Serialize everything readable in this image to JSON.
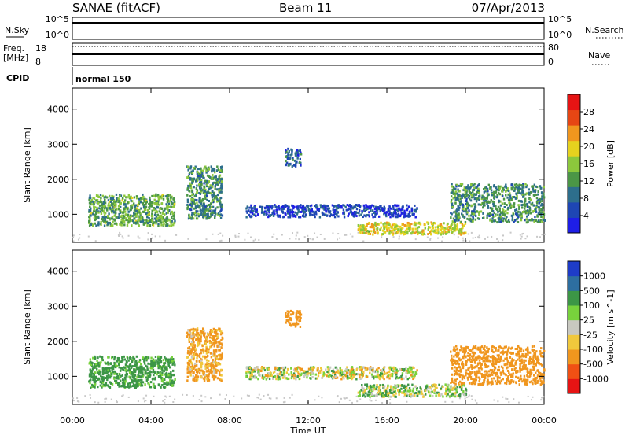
{
  "header": {
    "station": "SANAE (fitACF)",
    "beam": "Beam 11",
    "date": "07/Apr/2013"
  },
  "strip_labels": {
    "nsky": "N.Sky",
    "nsearch": "N.Search",
    "freq": "Freq.",
    "freq_unit": "[MHz]",
    "nave": "Nave",
    "cpid": "CPID",
    "cpid_value": "normal 150",
    "nsky_top": "10^5",
    "nsky_bottom": "10^0",
    "nsearch_top": "10^5",
    "nsearch_bottom": "10^0",
    "freq_top": "18",
    "freq_bottom": "8",
    "nave_top": "80",
    "nave_bottom": "0"
  },
  "colors": {
    "power_scale": [
      "#1e1ee6",
      "#1e46b4",
      "#2d6e8c",
      "#4b9646",
      "#8cc83c",
      "#e6d21e",
      "#f0961e",
      "#e64614",
      "#e61414"
    ],
    "velocity_scale": [
      "#e61414",
      "#f05014",
      "#f0961e",
      "#f0c83c",
      "#c8c8c0",
      "#78d23c",
      "#3c9646",
      "#2d6ea0",
      "#1e3cc8"
    ],
    "noise_gray": "#c8c8c8"
  },
  "chart_data": [
    {
      "type": "heatmap",
      "name": "power",
      "ylabel": "Slant Range [km]",
      "xlabel": "",
      "x_ticks": [
        "00:00",
        "04:00",
        "08:00",
        "12:00",
        "16:00",
        "20:00",
        "00:00"
      ],
      "y_ticks": [
        "1000",
        "2000",
        "3000",
        "4000"
      ],
      "ylim": [
        200,
        4600
      ],
      "xlim_hours": [
        0,
        24
      ],
      "colorbar": {
        "label": "Power [dB]",
        "ticks": [
          "4",
          "8",
          "12",
          "16",
          "20",
          "24",
          "28"
        ],
        "range": [
          0,
          30
        ]
      },
      "regions": [
        {
          "x": [
            0.8,
            5.2
          ],
          "y": [
            700,
            1600
          ],
          "value": 12
        },
        {
          "x": [
            5.8,
            7.6
          ],
          "y": [
            900,
            2400
          ],
          "value": 10
        },
        {
          "x": [
            8.8,
            17.5
          ],
          "y": [
            950,
            1300
          ],
          "value": 3
        },
        {
          "x": [
            14.5,
            20.0
          ],
          "y": [
            450,
            800
          ],
          "value": 18
        },
        {
          "x": [
            19.2,
            24.0
          ],
          "y": [
            800,
            1900
          ],
          "value": 10
        },
        {
          "x": [
            10.8,
            11.6
          ],
          "y": [
            2400,
            2900
          ],
          "value": 6
        }
      ]
    },
    {
      "type": "heatmap",
      "name": "velocity",
      "ylabel": "Slant Range [km]",
      "xlabel": "Time UT",
      "x_ticks": [
        "00:00",
        "04:00",
        "08:00",
        "12:00",
        "16:00",
        "20:00",
        "00:00"
      ],
      "y_ticks": [
        "1000",
        "2000",
        "3000",
        "4000"
      ],
      "ylim": [
        200,
        4600
      ],
      "xlim_hours": [
        0,
        24
      ],
      "colorbar": {
        "label": "Velocity [m s^-1]",
        "ticks": [
          "-1000",
          "-500",
          "-100",
          "-25",
          "25",
          "100",
          "500",
          "1000"
        ]
      },
      "regions": [
        {
          "x": [
            0.8,
            5.2
          ],
          "y": [
            700,
            1600
          ],
          "value": 200
        },
        {
          "x": [
            5.8,
            7.6
          ],
          "y": [
            900,
            2400
          ],
          "value": -150
        },
        {
          "x": [
            8.8,
            17.5
          ],
          "y": [
            950,
            1300
          ],
          "value": 0
        },
        {
          "x": [
            14.5,
            20.0
          ],
          "y": [
            450,
            800
          ],
          "value": 60
        },
        {
          "x": [
            19.2,
            24.0
          ],
          "y": [
            800,
            1900
          ],
          "value": -300
        },
        {
          "x": [
            10.8,
            11.6
          ],
          "y": [
            2400,
            2900
          ],
          "value": -300
        }
      ]
    }
  ]
}
